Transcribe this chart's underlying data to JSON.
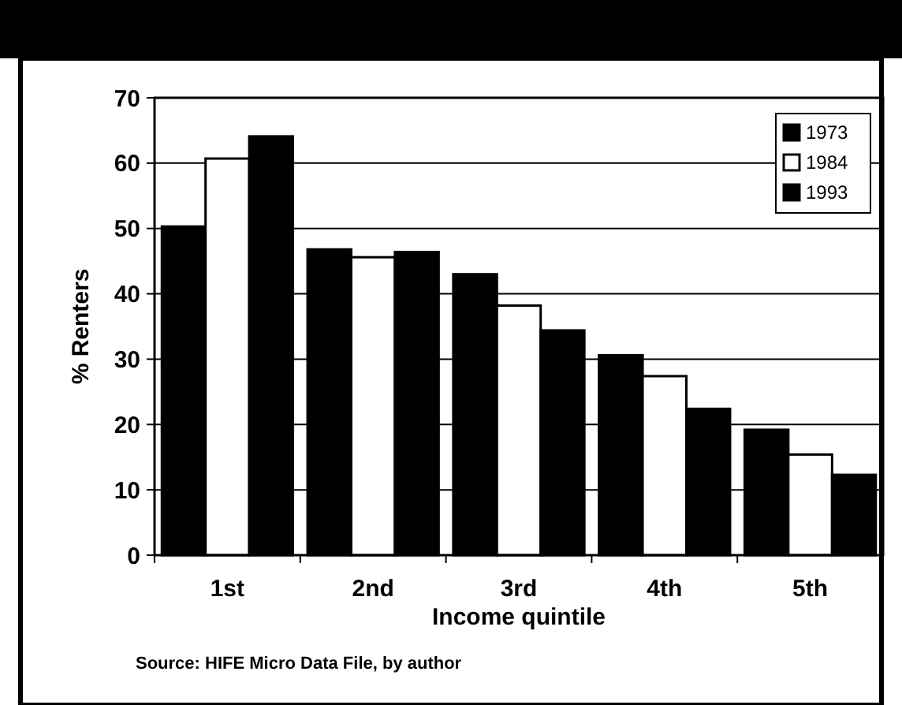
{
  "chart_data": {
    "type": "bar",
    "xlabel": "Income quintile",
    "ylabel": "% Renters",
    "categories": [
      "1st",
      "2nd",
      "3rd",
      "4th",
      "5th"
    ],
    "series": [
      {
        "name": "1973",
        "color": "#000000",
        "values": [
          50.3,
          46.8,
          43,
          30.6,
          19.2
        ]
      },
      {
        "name": "1984",
        "color": "#ffffff",
        "values": [
          60.7,
          45.6,
          38.2,
          27.4,
          15.4
        ]
      },
      {
        "name": "1993",
        "color": "#000000",
        "values": [
          64.1,
          46.4,
          34.4,
          22.4,
          12.3
        ]
      }
    ],
    "ylim": [
      0,
      70
    ],
    "yticks": [
      0,
      10,
      20,
      30,
      40,
      50,
      60,
      70
    ],
    "grid": "y",
    "legend": "top right",
    "annotations": [
      "Source:  HIFE Micro Data File, by author"
    ]
  }
}
